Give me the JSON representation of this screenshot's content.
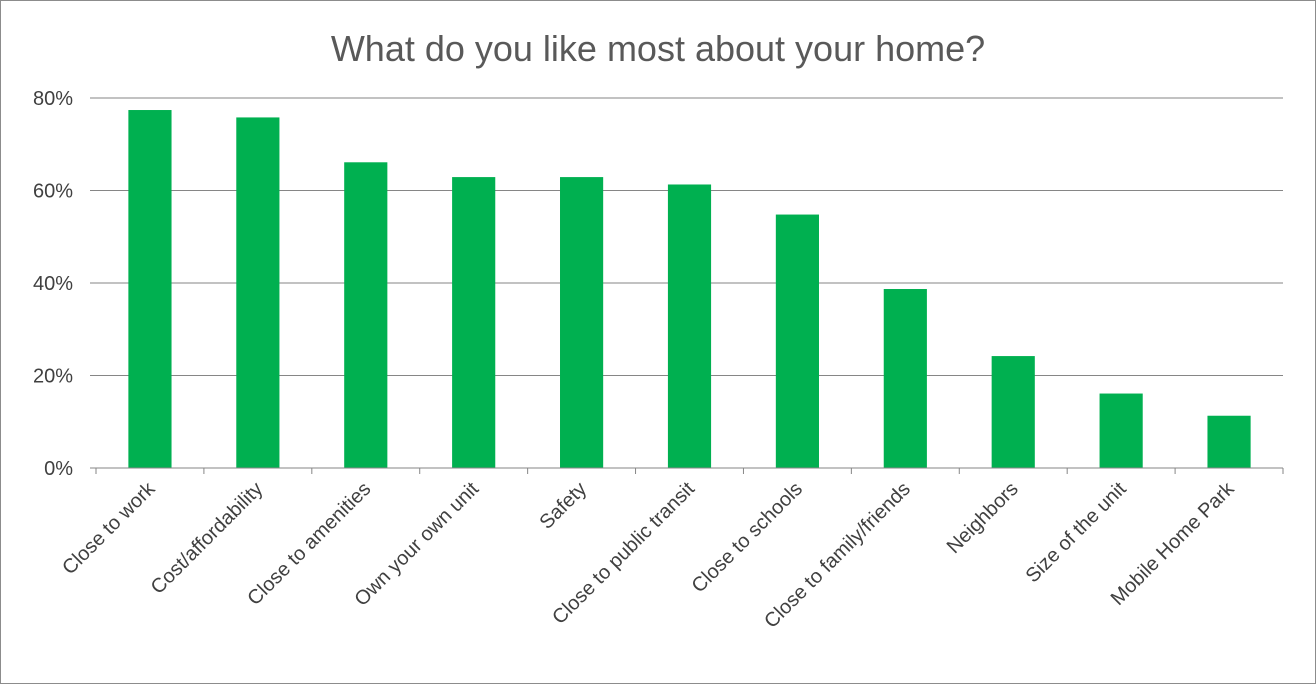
{
  "chart_data": {
    "type": "bar",
    "title": "What do you like most about your home?",
    "xlabel": "",
    "ylabel": "",
    "categories": [
      "Close to work",
      "Cost/affordability",
      "Close to amenities",
      "Own your own unit",
      "Safety",
      "Close to public transit",
      "Close to schools",
      "Close to family/friends",
      "Neighbors",
      "Size of the unit",
      "Mobile Home Park"
    ],
    "values": [
      77.4,
      75.8,
      66.1,
      62.9,
      62.9,
      61.3,
      54.8,
      38.7,
      24.2,
      16.1,
      11.3
    ],
    "ylim": [
      0,
      80
    ],
    "yticks": [
      0,
      20,
      40,
      60,
      80
    ],
    "ytick_labels": [
      "0%",
      "20%",
      "40%",
      "60%",
      "80%"
    ],
    "grid": true,
    "legend": "none",
    "colors": {
      "bar": "#00b050",
      "grid": "#868686",
      "text": "#404040",
      "title": "#595959"
    }
  }
}
